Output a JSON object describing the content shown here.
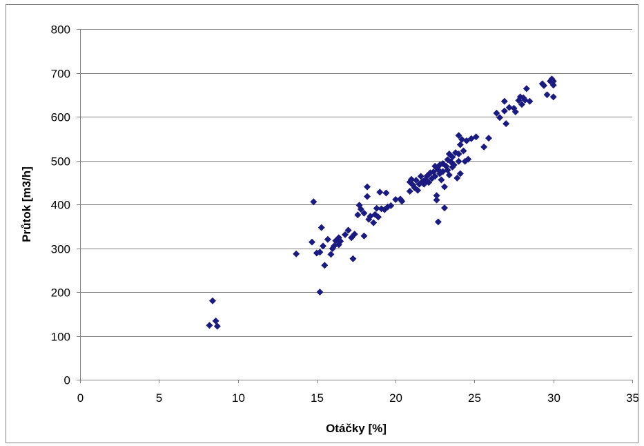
{
  "chart_data": {
    "type": "scatter",
    "title": "",
    "xlabel": "Otáčky [%]",
    "ylabel": "Průtok [m3/h]",
    "xlim": [
      0,
      35
    ],
    "ylim": [
      0,
      800
    ],
    "xticks": [
      0,
      5,
      10,
      15,
      20,
      25,
      30,
      35
    ],
    "yticks": [
      0,
      100,
      200,
      300,
      400,
      500,
      600,
      700,
      800
    ],
    "x_tick_labels": [
      "0",
      "5",
      "10",
      "15",
      "20",
      "25",
      "30",
      "35"
    ],
    "y_tick_labels": [
      "0",
      "100",
      "200",
      "300",
      "400",
      "500",
      "600",
      "700",
      "800"
    ],
    "grid": "horizontal",
    "marker": "diamond",
    "marker_color": "#1a1a80",
    "series": [
      {
        "points": [
          [
            8.2,
            124
          ],
          [
            8.4,
            180
          ],
          [
            8.6,
            134
          ],
          [
            8.7,
            122
          ],
          [
            13.7,
            287
          ],
          [
            14.7,
            314
          ],
          [
            14.8,
            406
          ],
          [
            15.0,
            289
          ],
          [
            15.2,
            291
          ],
          [
            15.3,
            347
          ],
          [
            15.2,
            200
          ],
          [
            15.4,
            305
          ],
          [
            15.5,
            261
          ],
          [
            15.7,
            320
          ],
          [
            15.9,
            286
          ],
          [
            16.0,
            299
          ],
          [
            16.1,
            305
          ],
          [
            16.2,
            317
          ],
          [
            16.3,
            320
          ],
          [
            16.4,
            308
          ],
          [
            16.5,
            316
          ],
          [
            16.4,
            324
          ],
          [
            16.8,
            331
          ],
          [
            17.0,
            341
          ],
          [
            17.2,
            324
          ],
          [
            17.3,
            276
          ],
          [
            17.4,
            332
          ],
          [
            17.6,
            376
          ],
          [
            17.7,
            398
          ],
          [
            17.8,
            389
          ],
          [
            18.0,
            328
          ],
          [
            18.0,
            380
          ],
          [
            18.2,
            418
          ],
          [
            18.2,
            440
          ],
          [
            18.3,
            366
          ],
          [
            18.4,
            373
          ],
          [
            18.6,
            358
          ],
          [
            18.7,
            377
          ],
          [
            18.8,
            391
          ],
          [
            18.9,
            371
          ],
          [
            19.0,
            428
          ],
          [
            19.1,
            390
          ],
          [
            19.3,
            388
          ],
          [
            19.4,
            426
          ],
          [
            19.5,
            394
          ],
          [
            19.7,
            397
          ],
          [
            20.0,
            411
          ],
          [
            20.3,
            412
          ],
          [
            20.4,
            407
          ],
          [
            20.9,
            430
          ],
          [
            20.9,
            451
          ],
          [
            21.0,
            457
          ],
          [
            21.1,
            444
          ],
          [
            21.2,
            438
          ],
          [
            21.3,
            455
          ],
          [
            21.4,
            432
          ],
          [
            21.5,
            446
          ],
          [
            21.6,
            464
          ],
          [
            21.7,
            452
          ],
          [
            21.8,
            446
          ],
          [
            21.9,
            457
          ],
          [
            22.0,
            465
          ],
          [
            22.1,
            450
          ],
          [
            22.2,
            472
          ],
          [
            22.3,
            459
          ],
          [
            22.4,
            474
          ],
          [
            22.5,
            487
          ],
          [
            22.5,
            464
          ],
          [
            22.6,
            420
          ],
          [
            22.6,
            410
          ],
          [
            22.7,
            479
          ],
          [
            22.7,
            360
          ],
          [
            22.8,
            490
          ],
          [
            22.8,
            470
          ],
          [
            22.9,
            456
          ],
          [
            23.0,
            475
          ],
          [
            23.0,
            493
          ],
          [
            23.1,
            440
          ],
          [
            23.1,
            392
          ],
          [
            23.2,
            487
          ],
          [
            23.3,
            502
          ],
          [
            23.3,
            478
          ],
          [
            23.4,
            515
          ],
          [
            23.4,
            467
          ],
          [
            23.5,
            497
          ],
          [
            23.6,
            508
          ],
          [
            23.6,
            485
          ],
          [
            23.7,
            490
          ],
          [
            23.8,
            518
          ],
          [
            23.9,
            460
          ],
          [
            24.0,
            498
          ],
          [
            24.0,
            557
          ],
          [
            24.0,
            515
          ],
          [
            24.1,
            536
          ],
          [
            24.1,
            470
          ],
          [
            24.2,
            548
          ],
          [
            24.3,
            522
          ],
          [
            24.4,
            498
          ],
          [
            24.5,
            545
          ],
          [
            24.6,
            503
          ],
          [
            24.8,
            550
          ],
          [
            25.1,
            554
          ],
          [
            25.6,
            531
          ],
          [
            25.9,
            551
          ],
          [
            26.4,
            608
          ],
          [
            26.6,
            598
          ],
          [
            26.9,
            635
          ],
          [
            26.9,
            613
          ],
          [
            27.0,
            584
          ],
          [
            27.2,
            621
          ],
          [
            27.5,
            619
          ],
          [
            27.6,
            611
          ],
          [
            27.8,
            637
          ],
          [
            27.9,
            645
          ],
          [
            28.0,
            628
          ],
          [
            28.1,
            643
          ],
          [
            28.2,
            638
          ],
          [
            28.3,
            664
          ],
          [
            28.5,
            635
          ],
          [
            29.3,
            675
          ],
          [
            29.4,
            671
          ],
          [
            29.6,
            650
          ],
          [
            29.8,
            681
          ],
          [
            29.9,
            686
          ],
          [
            30.0,
            672
          ],
          [
            30.0,
            645
          ],
          [
            30.0,
            681
          ]
        ]
      }
    ]
  }
}
